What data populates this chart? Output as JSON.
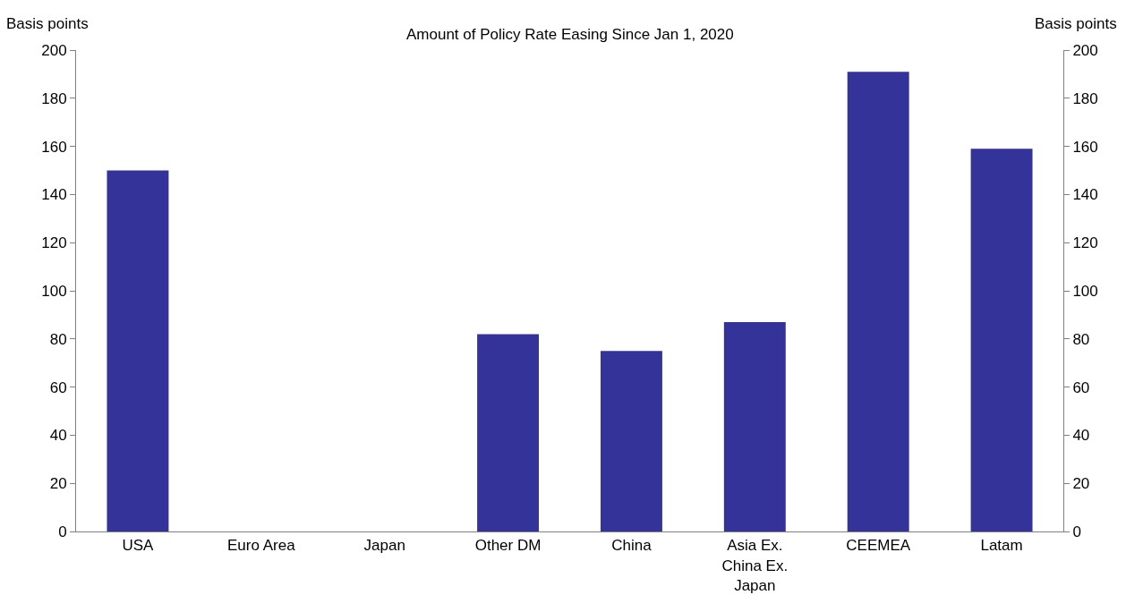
{
  "chart_data": {
    "type": "bar",
    "title": "Amount of Policy Rate Easing Since Jan 1, 2020",
    "ylabel": "Basis points",
    "y2label": "Basis points",
    "categories": [
      "USA",
      "Euro Area",
      "Japan",
      "Other DM",
      "China",
      "Asia Ex. China Ex. Japan",
      "CEEMEA",
      "Latam"
    ],
    "values": [
      150,
      0,
      0,
      82,
      75,
      87,
      191,
      159
    ],
    "color": "#333399",
    "ylim": [
      0,
      200
    ],
    "yticks": [
      0,
      20,
      40,
      60,
      80,
      100,
      120,
      140,
      160,
      180,
      200
    ],
    "y2lim": [
      0,
      200
    ],
    "y2ticks": [
      0,
      20,
      40,
      60,
      80,
      100,
      120,
      140,
      160,
      180,
      200
    ],
    "legend": false
  }
}
